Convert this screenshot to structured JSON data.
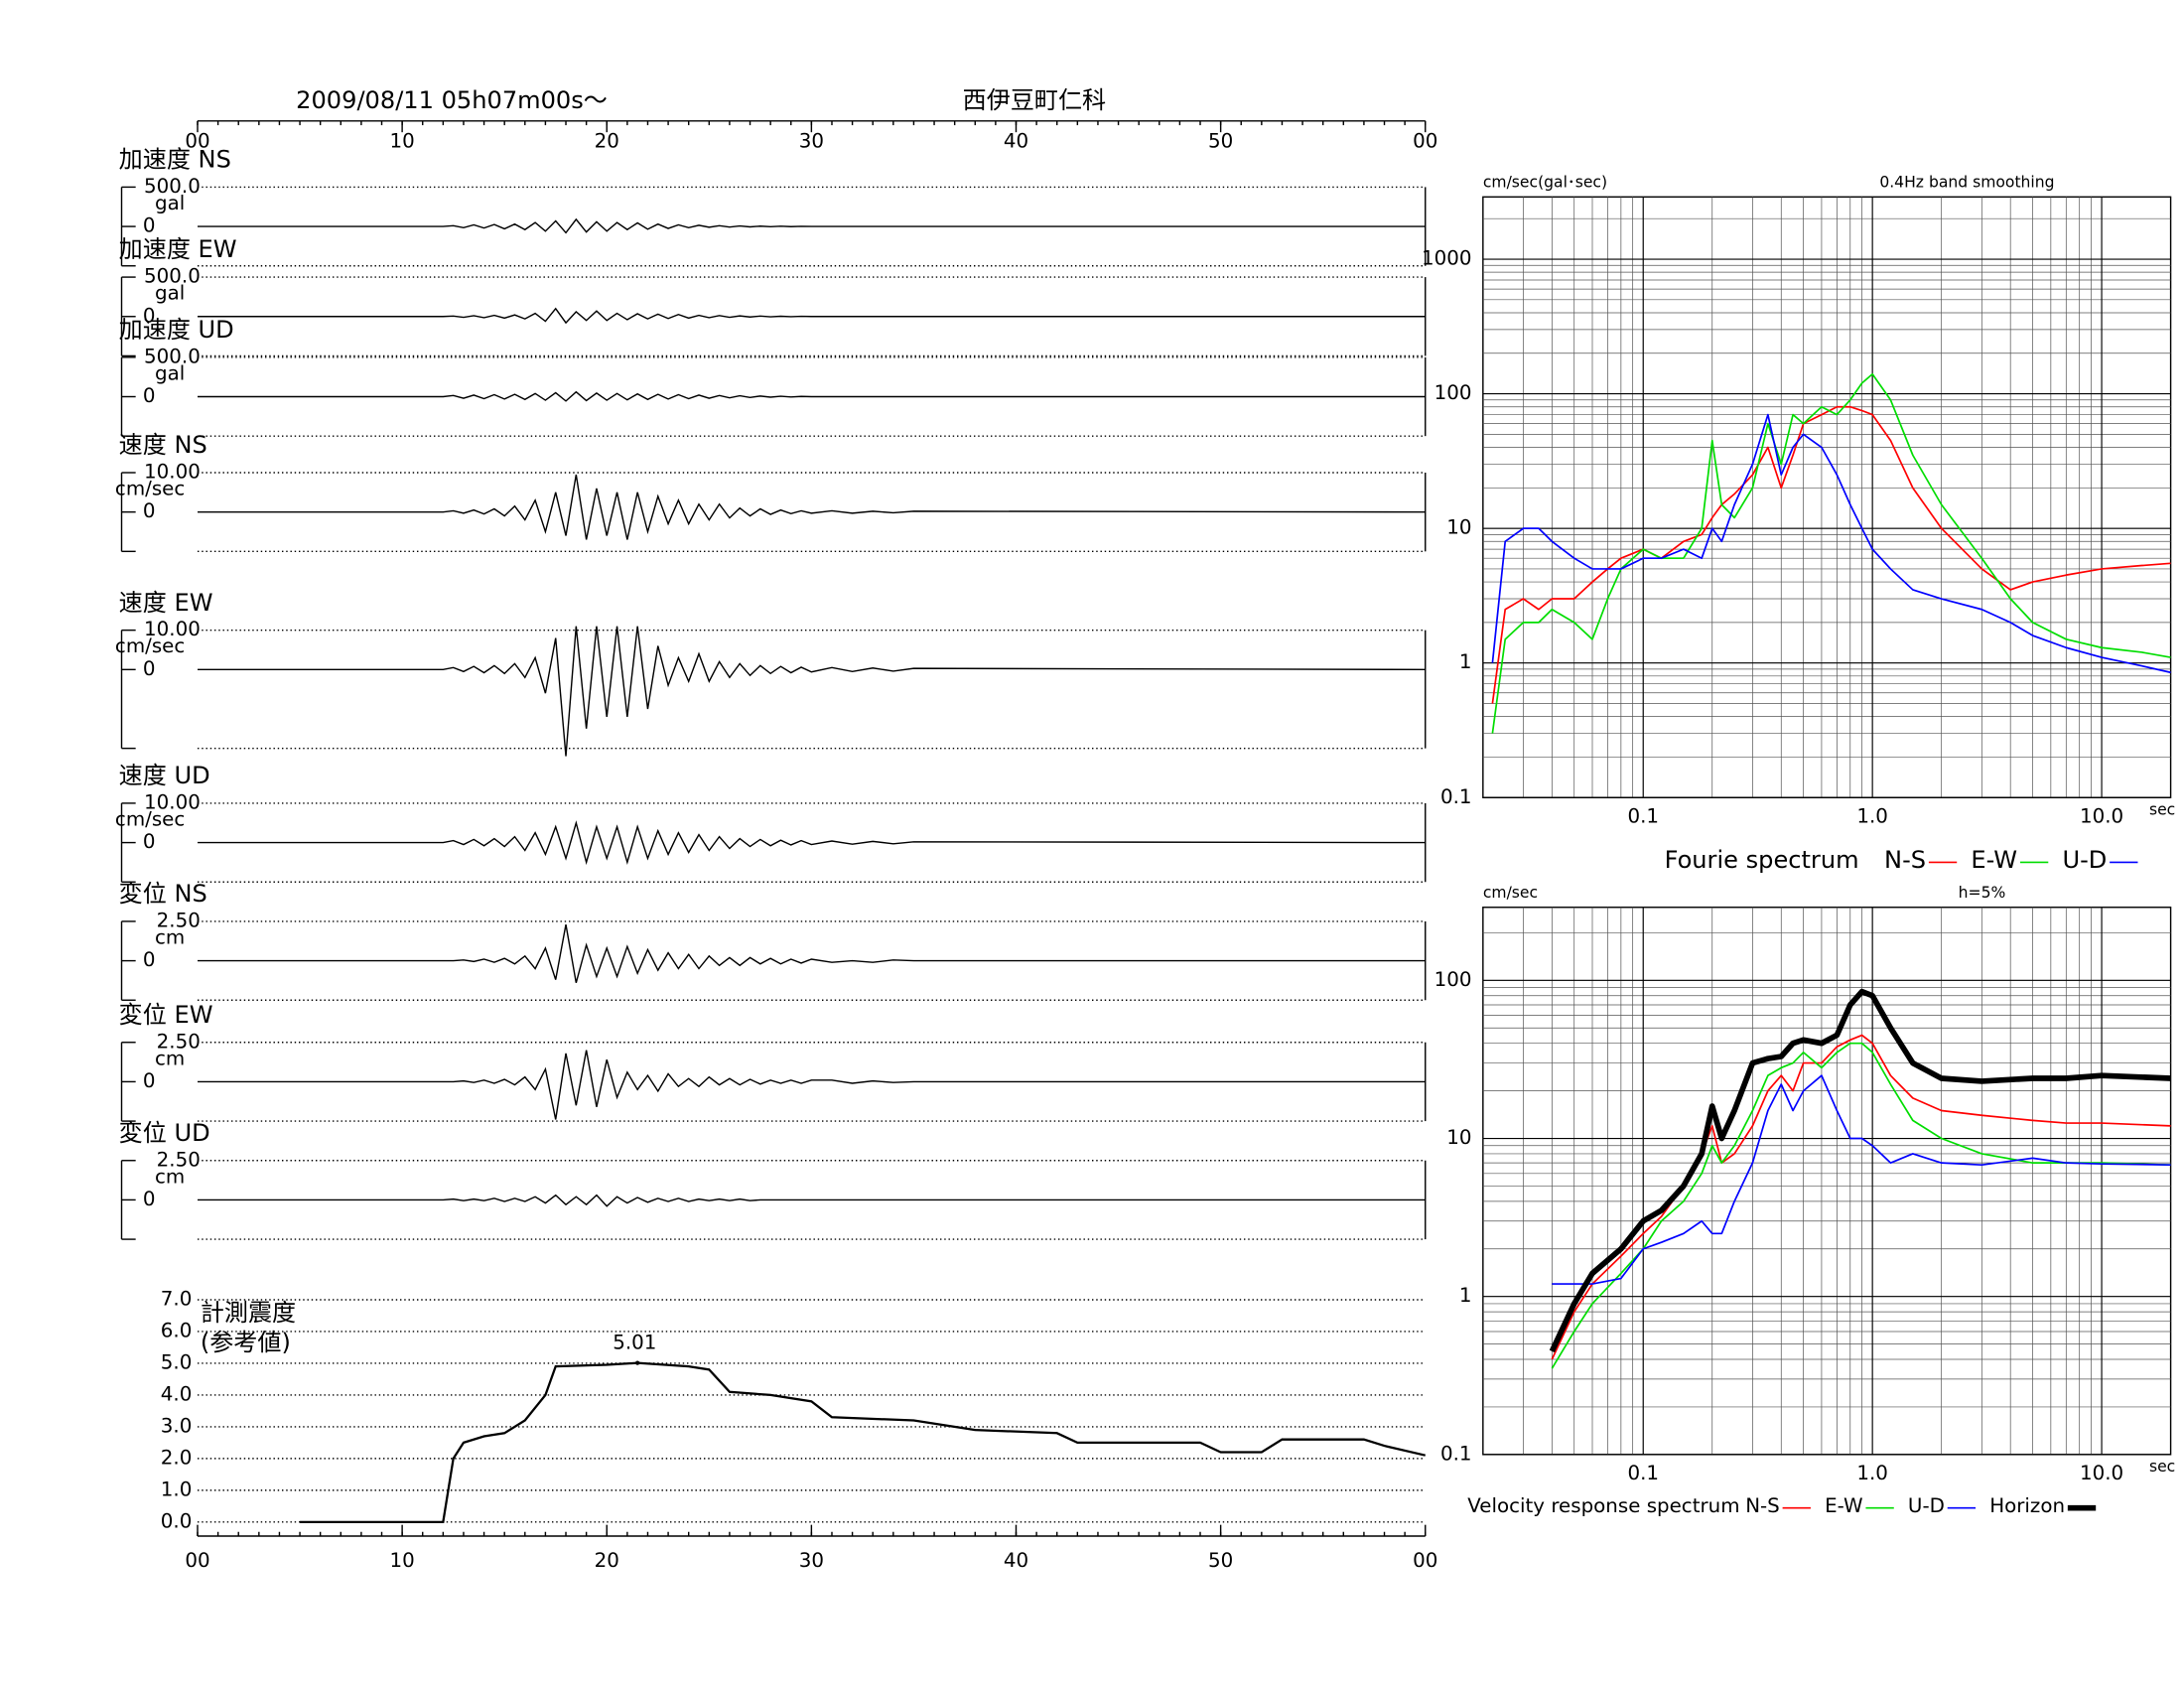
{
  "header": {
    "date": "2009/08/11  05h07m00s～",
    "station": "西伊豆町仁科"
  },
  "time_axis": {
    "xlim": [
      0,
      60
    ],
    "ticks": [
      {
        "value": 0,
        "label": "00"
      },
      10,
      20,
      30,
      40,
      50,
      {
        "value": 60,
        "label": "00"
      }
    ]
  },
  "waveforms": {
    "x": [
      0,
      12,
      12.5,
      13,
      13.5,
      14,
      14.5,
      15,
      15.5,
      16,
      16.5,
      17,
      17.5,
      18,
      18.5,
      19,
      19.5,
      20,
      20.5,
      21,
      21.5,
      22,
      22.5,
      23,
      23.5,
      24,
      24.5,
      25,
      25.5,
      26,
      26.5,
      27,
      27.5,
      28,
      28.5,
      29,
      29.5,
      30,
      31,
      32,
      33,
      34,
      35,
      60
    ],
    "panels": [
      {
        "label": "加速度 NS",
        "unit": "gal",
        "ylim": [
          -500,
          500
        ],
        "yticks": [
          0,
          {
            "value": 500,
            "label": "500.0"
          }
        ],
        "values": [
          0,
          0,
          10,
          -15,
          20,
          -20,
          25,
          -30,
          30,
          -40,
          50,
          -60,
          70,
          -80,
          90,
          -70,
          60,
          -60,
          50,
          -40,
          45,
          -35,
          30,
          -25,
          20,
          -15,
          15,
          -10,
          10,
          -8,
          6,
          -5,
          4,
          -3,
          3,
          -2,
          2,
          0,
          0,
          0,
          0,
          0,
          0,
          0
        ]
      },
      {
        "label": "加速度 EW",
        "unit": "gal",
        "ylim": [
          -500,
          500
        ],
        "yticks": [
          0,
          {
            "value": 500,
            "label": "500.0"
          }
        ],
        "values": [
          0,
          0,
          5,
          -10,
          10,
          -15,
          15,
          -20,
          20,
          -30,
          40,
          -60,
          100,
          -80,
          60,
          -50,
          70,
          -50,
          40,
          -40,
          35,
          -30,
          30,
          -25,
          25,
          -20,
          15,
          -15,
          12,
          -10,
          8,
          -6,
          5,
          -4,
          3,
          -2,
          2,
          0,
          0,
          0,
          0,
          0,
          0,
          0
        ]
      },
      {
        "label": "加速度 UD",
        "unit": "gal",
        "ylim": [
          -500,
          500
        ],
        "yticks": [
          0,
          {
            "value": 500,
            "label": "500.0"
          }
        ],
        "values": [
          0,
          0,
          15,
          -20,
          20,
          -25,
          25,
          -30,
          30,
          -35,
          40,
          -45,
          50,
          -55,
          60,
          -50,
          45,
          -45,
          40,
          -40,
          35,
          -35,
          30,
          -30,
          25,
          -25,
          20,
          -20,
          15,
          -15,
          12,
          -10,
          8,
          -6,
          5,
          -4,
          3,
          0,
          0,
          0,
          0,
          0,
          0,
          0
        ]
      },
      {
        "label": "速度 NS",
        "unit": "cm/sec",
        "ylim": [
          -10,
          10
        ],
        "yticks": [
          0,
          {
            "value": 10,
            "label": "10.00"
          }
        ],
        "values": [
          0,
          0,
          0.3,
          -0.3,
          0.5,
          -0.5,
          0.8,
          -1,
          1.5,
          -2,
          3,
          -5,
          5,
          -6,
          9.5,
          -7,
          6,
          -6,
          5,
          -7,
          5,
          -5,
          4,
          -3,
          3,
          -3,
          2,
          -2,
          2,
          -1.5,
          1,
          -1,
          0.8,
          -0.6,
          0.5,
          -0.4,
          0.3,
          -0.3,
          0.3,
          -0.3,
          0.2,
          -0.2,
          0.2,
          0
        ]
      },
      {
        "label": "速度 EW",
        "unit": "cm/sec",
        "ylim": [
          -20,
          10
        ],
        "yticks": [
          0,
          {
            "value": 10,
            "label": "10.00"
          }
        ],
        "values": [
          0,
          0,
          0.5,
          -0.5,
          0.8,
          -0.8,
          1,
          -1,
          1.5,
          -2,
          3,
          -6,
          8,
          -22,
          11,
          -15,
          11,
          -12,
          11,
          -12,
          11,
          -10,
          6,
          -4,
          3,
          -3,
          4,
          -3,
          2,
          -2,
          1.5,
          -1.5,
          1,
          -1,
          0.8,
          -0.8,
          0.6,
          -0.6,
          0.5,
          -0.5,
          0.4,
          -0.4,
          0.3,
          0
        ]
      },
      {
        "label": "速度 UD",
        "unit": "cm/sec",
        "ylim": [
          -10,
          10
        ],
        "yticks": [
          0,
          {
            "value": 10,
            "label": "10.00"
          }
        ],
        "values": [
          0,
          0,
          0.5,
          -0.5,
          0.8,
          -0.8,
          1,
          -1,
          1.5,
          -2,
          2.5,
          -3,
          4,
          -4,
          5,
          -5,
          4,
          -4,
          4,
          -5,
          4,
          -4,
          3,
          -3,
          2.5,
          -2.5,
          2,
          -2,
          1.5,
          -1.5,
          1,
          -1,
          0.8,
          -0.8,
          0.6,
          -0.6,
          0.5,
          -0.5,
          0.4,
          -0.4,
          0.3,
          -0.3,
          0.2,
          0
        ]
      },
      {
        "label": "変位 NS",
        "unit": "cm",
        "ylim": [
          -2.5,
          2.5
        ],
        "yticks": [
          0,
          {
            "value": 2.5,
            "label": "2.50"
          }
        ],
        "values": [
          0,
          0,
          0,
          0.05,
          -0.05,
          0.1,
          -0.1,
          0.15,
          -0.2,
          0.3,
          -0.5,
          0.8,
          -1.2,
          2.3,
          -1.4,
          1.0,
          -1.0,
          0.8,
          -1.0,
          0.9,
          -0.8,
          0.7,
          -0.6,
          0.5,
          -0.5,
          0.4,
          -0.5,
          0.3,
          -0.3,
          0.2,
          -0.3,
          0.2,
          -0.2,
          0.15,
          -0.2,
          0.1,
          -0.15,
          0.1,
          -0.1,
          0,
          -0.1,
          0.05,
          0,
          0
        ]
      },
      {
        "label": "変位 EW",
        "unit": "cm",
        "ylim": [
          -2.5,
          2.5
        ],
        "yticks": [
          0,
          {
            "value": 2.5,
            "label": "2.50"
          }
        ],
        "values": [
          0,
          0,
          0,
          0.05,
          -0.05,
          0.1,
          -0.1,
          0.15,
          -0.2,
          0.3,
          -0.5,
          0.8,
          -2.4,
          1.8,
          -1.5,
          2.0,
          -1.6,
          1.4,
          -1.0,
          0.6,
          -0.5,
          0.4,
          -0.6,
          0.5,
          -0.3,
          0.2,
          -0.3,
          0.3,
          -0.2,
          0.2,
          -0.2,
          0.15,
          -0.15,
          0.1,
          -0.1,
          0.1,
          -0.1,
          0.1,
          0.1,
          -0.1,
          0.05,
          -0.05,
          0,
          0
        ]
      },
      {
        "label": "変位 UD",
        "unit": "cm",
        "ylim": [
          -2.5,
          2.5
        ],
        "yticks": [
          0,
          {
            "value": 2.5,
            "label": "2.50"
          }
        ],
        "values": [
          0,
          0,
          0.05,
          -0.05,
          0.05,
          -0.05,
          0.1,
          -0.1,
          0.1,
          -0.1,
          0.2,
          -0.2,
          0.3,
          -0.3,
          0.2,
          -0.3,
          0.3,
          -0.4,
          0.2,
          -0.2,
          0.15,
          -0.15,
          0.1,
          -0.1,
          0.1,
          -0.1,
          0.05,
          -0.05,
          0.05,
          -0.05,
          0.05,
          -0.05,
          0,
          0,
          0,
          0,
          0,
          0,
          0,
          0,
          0,
          0,
          0,
          0
        ]
      }
    ]
  },
  "intensity": {
    "type": "line",
    "label": [
      "計測震度",
      "(参考値)"
    ],
    "ylim": [
      0,
      7
    ],
    "yticks": [
      {
        "value": 0,
        "label": "0.0"
      },
      {
        "value": 1,
        "label": "1.0"
      },
      {
        "value": 2,
        "label": "2.0"
      },
      {
        "value": 3,
        "label": "3.0"
      },
      {
        "value": 4,
        "label": "4.0"
      },
      {
        "value": 5,
        "label": "5.0"
      },
      {
        "value": 6,
        "label": "6.0"
      },
      {
        "value": 7,
        "label": "7.0"
      }
    ],
    "x": [
      5,
      12,
      12.5,
      13,
      14,
      15,
      16,
      17,
      17.5,
      20,
      21.5,
      24,
      25,
      26,
      28,
      30,
      31,
      35,
      38,
      42,
      43,
      49,
      50,
      52,
      53,
      57,
      58,
      60
    ],
    "values": [
      0,
      0,
      2,
      2.5,
      2.7,
      2.8,
      3.2,
      4.0,
      4.9,
      4.95,
      5.01,
      4.9,
      4.8,
      4.1,
      4.0,
      3.8,
      3.3,
      3.2,
      2.9,
      2.8,
      2.5,
      2.5,
      2.2,
      2.2,
      2.6,
      2.6,
      2.4,
      2.1
    ],
    "peak": {
      "x": 21.5,
      "value": 5.01,
      "label": "5.01"
    }
  },
  "fourier": {
    "type": "line",
    "log_x": true,
    "log_y": true,
    "grid": true,
    "xlim": [
      0.02,
      20
    ],
    "ylim": [
      0.1,
      2900
    ],
    "xticks": [
      0.1,
      {
        "value": 1,
        "label": "1.0"
      },
      {
        "value": 10,
        "label": "10.0"
      }
    ],
    "yticks": [
      0.1,
      1,
      10,
      100,
      1000
    ],
    "y_unit": "cm/sec(gal･sec)",
    "note": "0.4Hz band smoothing",
    "x_unit": "sec",
    "legend_title": "Fourie spectrum",
    "x": [
      0.022,
      0.025,
      0.03,
      0.035,
      0.04,
      0.05,
      0.06,
      0.07,
      0.08,
      0.1,
      0.12,
      0.15,
      0.18,
      0.2,
      0.22,
      0.25,
      0.3,
      0.35,
      0.4,
      0.45,
      0.5,
      0.6,
      0.7,
      0.8,
      0.9,
      1.0,
      1.2,
      1.5,
      2,
      3,
      4,
      5,
      7,
      10,
      15,
      20
    ],
    "series": [
      {
        "name": "N-S",
        "color": "#ff0000",
        "width": 1.2,
        "values": [
          0.5,
          2.5,
          3,
          2.5,
          3,
          3,
          4,
          5,
          6,
          7,
          6,
          8,
          9,
          12,
          15,
          18,
          25,
          40,
          20,
          35,
          60,
          70,
          80,
          80,
          75,
          70,
          45,
          20,
          10,
          5,
          3.5,
          4,
          4.5,
          5,
          5.3,
          5.5
        ]
      },
      {
        "name": "E-W",
        "color": "#00dd00",
        "width": 1.2,
        "values": [
          0.3,
          1.5,
          2,
          2,
          2.5,
          2,
          1.5,
          3,
          5,
          7,
          6,
          6,
          10,
          45,
          15,
          12,
          20,
          60,
          30,
          70,
          60,
          80,
          70,
          90,
          120,
          140,
          90,
          35,
          15,
          6,
          3,
          2,
          1.5,
          1.3,
          1.2,
          1.1
        ]
      },
      {
        "name": "U-D",
        "color": "#0000ff",
        "width": 1.2,
        "values": [
          1,
          8,
          10,
          10,
          8,
          6,
          5,
          5,
          5,
          6,
          6,
          7,
          6,
          10,
          8,
          15,
          30,
          70,
          25,
          40,
          50,
          40,
          25,
          15,
          10,
          7,
          5,
          3.5,
          3,
          2.5,
          2,
          1.6,
          1.3,
          1.1,
          0.95,
          0.85
        ]
      }
    ]
  },
  "response": {
    "type": "line",
    "log_x": true,
    "log_y": true,
    "grid": true,
    "xlim": [
      0.02,
      20
    ],
    "ylim": [
      0.1,
      290
    ],
    "xticks": [
      0.1,
      {
        "value": 1,
        "label": "1.0"
      },
      {
        "value": 10,
        "label": "10.0"
      }
    ],
    "yticks": [
      0.1,
      1,
      10,
      100
    ],
    "y_unit": "cm/sec",
    "note": "h=5%",
    "x_unit": "sec",
    "legend_title": "Velocity response spectrum",
    "x": [
      0.04,
      0.05,
      0.06,
      0.08,
      0.1,
      0.12,
      0.15,
      0.18,
      0.2,
      0.22,
      0.25,
      0.3,
      0.35,
      0.4,
      0.45,
      0.5,
      0.6,
      0.7,
      0.8,
      0.9,
      1.0,
      1.2,
      1.5,
      2,
      3,
      5,
      7,
      10,
      20
    ],
    "series": [
      {
        "name": "N-S",
        "color": "#ff0000",
        "width": 1.2,
        "values": [
          0.4,
          0.8,
          1.2,
          1.8,
          2.5,
          3.2,
          5,
          8,
          12,
          7,
          8,
          12,
          20,
          25,
          20,
          30,
          30,
          38,
          42,
          45,
          40,
          25,
          18,
          15,
          14,
          13,
          12.5,
          12.5,
          12
        ]
      },
      {
        "name": "E-W",
        "color": "#00dd00",
        "width": 1.2,
        "values": [
          0.35,
          0.6,
          0.9,
          1.4,
          2,
          3,
          4,
          6,
          9,
          7,
          9,
          15,
          25,
          28,
          30,
          35,
          28,
          35,
          40,
          40,
          35,
          22,
          13,
          10,
          8,
          7,
          7,
          7,
          6.8
        ]
      },
      {
        "name": "U-D",
        "color": "#0000ff",
        "width": 1.2,
        "values": [
          1.2,
          1.2,
          1.2,
          1.3,
          2,
          2.2,
          2.5,
          3,
          2.5,
          2.5,
          4,
          7,
          15,
          22,
          15,
          20,
          25,
          15,
          10,
          10,
          9,
          7,
          8,
          7,
          6.8,
          7.5,
          7,
          6.9,
          6.8
        ]
      },
      {
        "name": "Horizon",
        "color": "#000000",
        "width": 4,
        "values": [
          0.45,
          0.9,
          1.4,
          2,
          3,
          3.5,
          5,
          8,
          16,
          10,
          15,
          30,
          32,
          33,
          40,
          42,
          40,
          45,
          70,
          85,
          80,
          50,
          30,
          24,
          23,
          24,
          24,
          25,
          24
        ]
      }
    ]
  }
}
